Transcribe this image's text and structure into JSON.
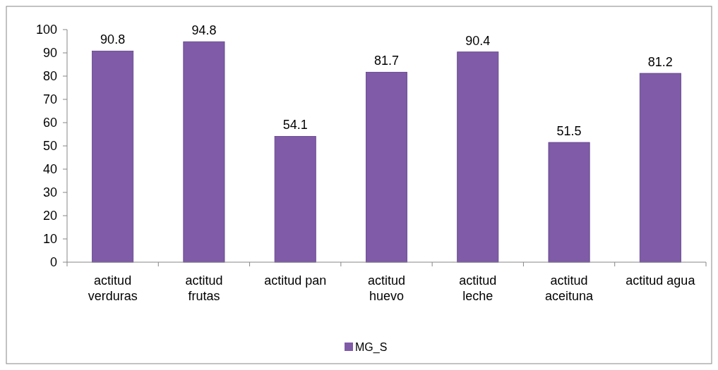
{
  "chart_data": {
    "type": "bar",
    "categories": [
      "actitud verduras",
      "actitud frutas",
      "actitud pan",
      "actitud huevo",
      "actitud leche",
      "actitud aceituna",
      "actitud agua"
    ],
    "series": [
      {
        "name": "MG_S",
        "color": "#7f5ba8",
        "values": [
          90.8,
          94.8,
          54.1,
          81.7,
          90.4,
          51.5,
          81.2
        ]
      }
    ],
    "ylim": [
      0,
      100
    ],
    "yticks": [
      0,
      10,
      20,
      30,
      40,
      50,
      60,
      70,
      80,
      90,
      100
    ],
    "grid": false,
    "legend": "bottom",
    "data_labels": true
  }
}
